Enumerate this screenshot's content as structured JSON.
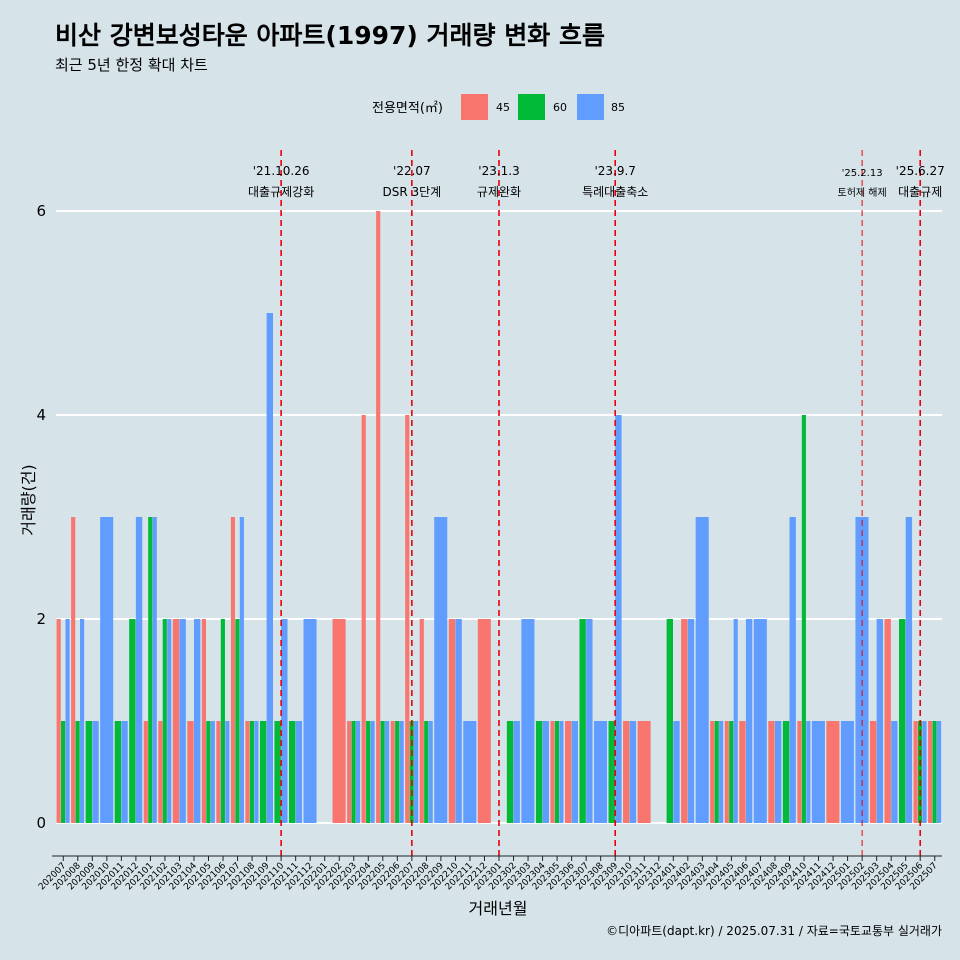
{
  "title": "비산 강변보성타운 아파트(1997) 거래량 변화 흐름",
  "subtitle": "최근 5년 한정 확대 차트",
  "caption": "©디아파트(dapt.kr) / 2025.07.31 / 자료=국토교통부 실거래가",
  "colors": {
    "45": "#f8766d",
    "60": "#00ba38",
    "85": "#619cff",
    "background": "#d6e4ea",
    "grid": "#ffffff",
    "vline": "#e8000b"
  },
  "chart_data": {
    "type": "bar",
    "xlabel": "거래년월",
    "ylabel": "거래량(건)",
    "ylim": [
      0,
      6
    ],
    "yticks": [
      0,
      2,
      4,
      6
    ],
    "legend_title": "전용면적(㎡)",
    "legend_position": "top",
    "grid": true,
    "categories": [
      "202007",
      "202008",
      "202009",
      "202010",
      "202011",
      "202012",
      "202101",
      "202102",
      "202103",
      "202104",
      "202105",
      "202106",
      "202107",
      "202108",
      "202109",
      "202110",
      "202111",
      "202112",
      "202201",
      "202202",
      "202203",
      "202204",
      "202205",
      "202206",
      "202207",
      "202208",
      "202209",
      "202210",
      "202211",
      "202212",
      "202301",
      "202302",
      "202303",
      "202304",
      "202305",
      "202306",
      "202307",
      "202308",
      "202309",
      "202310",
      "202311",
      "202312",
      "202401",
      "202402",
      "202403",
      "202404",
      "202405",
      "202406",
      "202407",
      "202408",
      "202409",
      "202410",
      "202411",
      "202412",
      "202501",
      "202502",
      "202503",
      "202504",
      "202505",
      "202506",
      "202507"
    ],
    "series": [
      {
        "name": "45",
        "values": [
          2,
          3,
          0,
          0,
          0,
          0,
          1,
          1,
          2,
          1,
          2,
          1,
          3,
          1,
          0,
          0,
          0,
          0,
          0,
          2,
          1,
          4,
          6,
          1,
          4,
          2,
          0,
          2,
          0,
          2,
          0,
          0,
          0,
          0,
          1,
          1,
          0,
          0,
          0,
          1,
          1,
          0,
          0,
          2,
          0,
          1,
          1,
          1,
          0,
          1,
          0,
          1,
          0,
          1,
          0,
          0,
          1,
          2,
          0,
          1,
          1
        ]
      },
      {
        "name": "60",
        "values": [
          1,
          1,
          1,
          0,
          1,
          2,
          3,
          2,
          0,
          0,
          1,
          2,
          2,
          1,
          1,
          1,
          1,
          0,
          0,
          0,
          1,
          1,
          1,
          1,
          1,
          1,
          0,
          0,
          0,
          0,
          0,
          1,
          0,
          1,
          1,
          0,
          2,
          0,
          1,
          0,
          0,
          0,
          2,
          0,
          0,
          1,
          1,
          0,
          0,
          0,
          1,
          4,
          0,
          0,
          0,
          0,
          0,
          0,
          2,
          1,
          1
        ]
      },
      {
        "name": "85",
        "values": [
          2,
          2,
          1,
          3,
          1,
          3,
          3,
          2,
          2,
          2,
          1,
          1,
          3,
          1,
          5,
          2,
          1,
          2,
          0,
          0,
          1,
          1,
          1,
          1,
          1,
          1,
          3,
          2,
          1,
          0,
          0,
          1,
          2,
          1,
          1,
          1,
          2,
          1,
          4,
          1,
          0,
          0,
          1,
          2,
          3,
          1,
          2,
          2,
          2,
          1,
          3,
          1,
          1,
          0,
          1,
          3,
          2,
          1,
          3,
          1,
          1
        ]
      }
    ],
    "annotations": [
      {
        "at": "202110",
        "date": "'21.10.26",
        "text": "대출규제강화"
      },
      {
        "at": "202207",
        "date": "'22.07",
        "text": "DSR 3단계"
      },
      {
        "at": "202301",
        "date": "'23.1.3",
        "text": "규제완화"
      },
      {
        "at": "202309",
        "date": "'23.9.7",
        "text": "특례대출축소"
      },
      {
        "at": "202502",
        "date": "'25.2.13",
        "text": "토허제 해제",
        "small": true
      },
      {
        "at": "202506",
        "date": "'25.6.27",
        "text": "대출규제"
      }
    ]
  }
}
